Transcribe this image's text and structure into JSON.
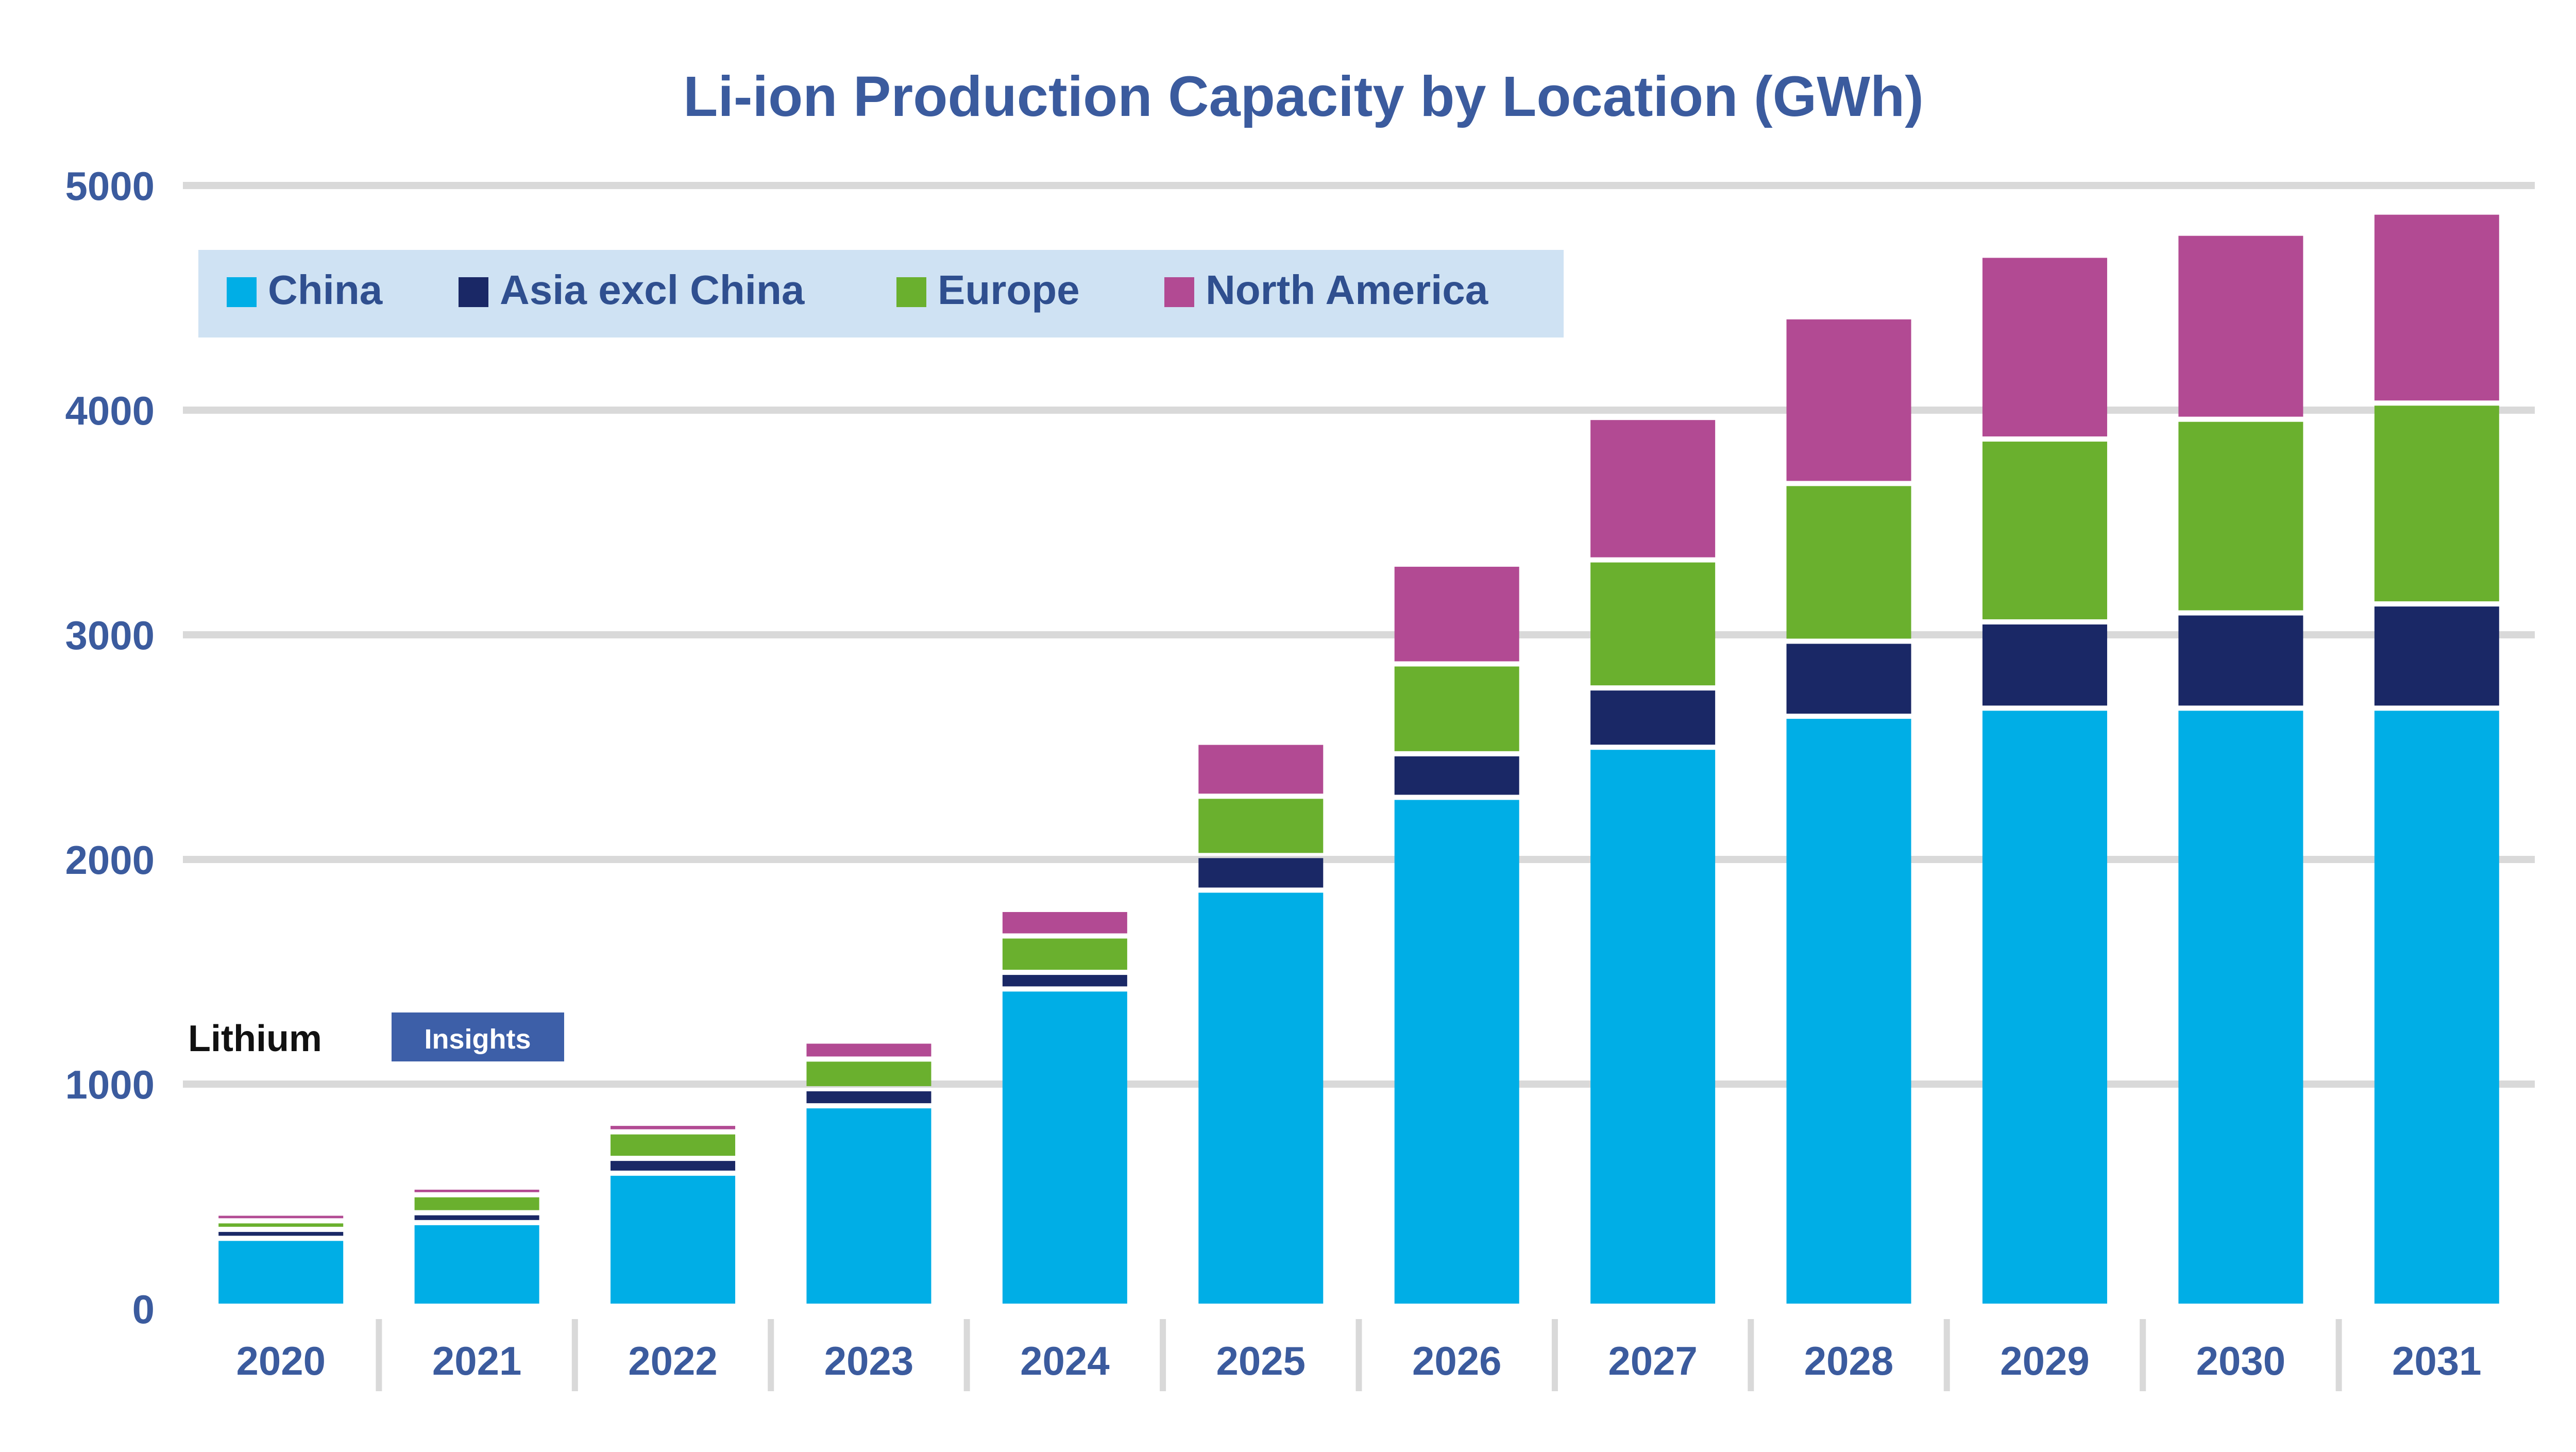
{
  "chart_data": {
    "type": "bar",
    "stacked": true,
    "title": "Li-ion Production Capacity by Location (GWh)",
    "categories": [
      "2020",
      "2021",
      "2022",
      "2023",
      "2024",
      "2025",
      "2026",
      "2027",
      "2028",
      "2029",
      "2030",
      "2031"
    ],
    "series": [
      {
        "name": "China",
        "color": "#00aee6",
        "values": [
          302,
          372,
          592,
          892,
          1412,
          1852,
          2265,
          2488,
          2626,
          2662,
          2662,
          2662
        ]
      },
      {
        "name": "Asia excl China",
        "color": "#1a2866",
        "values": [
          40,
          44,
          66,
          76,
          74,
          154,
          194,
          264,
          334,
          384,
          424,
          464
        ]
      },
      {
        "name": "Europe",
        "color": "#6ab02e",
        "values": [
          38,
          80,
          118,
          132,
          162,
          264,
          400,
          570,
          702,
          814,
          862,
          894
        ]
      },
      {
        "name": "North America",
        "color": "#b24a93",
        "values": [
          34,
          34,
          38,
          80,
          118,
          240,
          444,
          634,
          742,
          818,
          828,
          850
        ]
      }
    ],
    "ylim": [
      0,
      5000
    ],
    "yticks": [
      "0",
      "1000",
      "2000",
      "3000",
      "4000",
      "5000"
    ],
    "grid": true,
    "legend": {
      "position": "top-left"
    },
    "annotation": {
      "label": "Lithium",
      "badge": "Insights"
    }
  }
}
